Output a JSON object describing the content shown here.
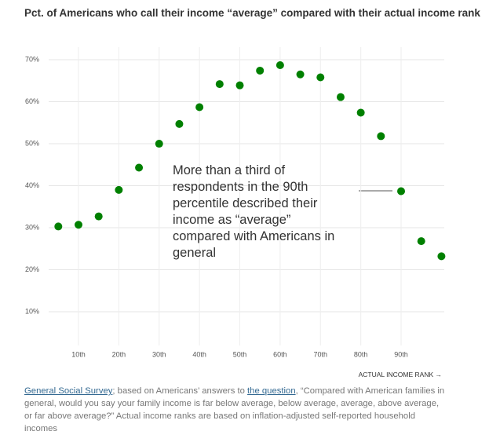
{
  "chart_data": {
    "type": "scatter",
    "title": "Pct. of Americans who call their income “average” compared with their actual income rank",
    "x": [
      5,
      10,
      15,
      20,
      25,
      30,
      35,
      40,
      45,
      50,
      55,
      60,
      65,
      70,
      75,
      80,
      85,
      90,
      95,
      100
    ],
    "series": [
      {
        "name": null,
        "color": "#008000",
        "values": [
          30.3,
          30.7,
          32.7,
          39.0,
          44.3,
          50.0,
          54.7,
          58.7,
          64.2,
          63.9,
          67.4,
          68.7,
          66.5,
          65.8,
          61.1,
          57.4,
          51.8,
          38.7,
          26.8,
          23.2
        ]
      }
    ],
    "xlim": [
      2,
      100
    ],
    "ylim": [
      0,
      73
    ],
    "xticks": [
      {
        "value": 10,
        "label": "10th"
      },
      {
        "value": 20,
        "label": "20th"
      },
      {
        "value": 30,
        "label": "30th"
      },
      {
        "value": 40,
        "label": "40th"
      },
      {
        "value": 50,
        "label": "50th"
      },
      {
        "value": 60,
        "label": "60th"
      },
      {
        "value": 70,
        "label": "70th"
      },
      {
        "value": 80,
        "label": "80th"
      },
      {
        "value": 90,
        "label": "90th"
      }
    ],
    "yticks": [
      {
        "value": 10,
        "label": "10%"
      },
      {
        "value": 20,
        "label": "20%"
      },
      {
        "value": 30,
        "label": "30%"
      },
      {
        "value": 40,
        "label": "40%"
      },
      {
        "value": 50,
        "label": "50%"
      },
      {
        "value": 60,
        "label": "60%"
      },
      {
        "value": 70,
        "label": "70%"
      }
    ],
    "grid": true,
    "x_label": "ACTUAL INCOME RANK →",
    "annotation": [
      "More than a third of",
      "respondents in the 90th",
      "percentile described their",
      "income as “average”",
      "compared with Americans in",
      "general"
    ]
  },
  "footer": {
    "source_link": "General Social Survey",
    "source_text": "; based on Americans’ answers to ",
    "question_link": "the question",
    "question_text": ", “Compared with American families in general, would you say your family income is far below average, below average, average, above average, or far above average?” Actual income ranks are based on inflation-adjusted self-reported household incomes"
  }
}
